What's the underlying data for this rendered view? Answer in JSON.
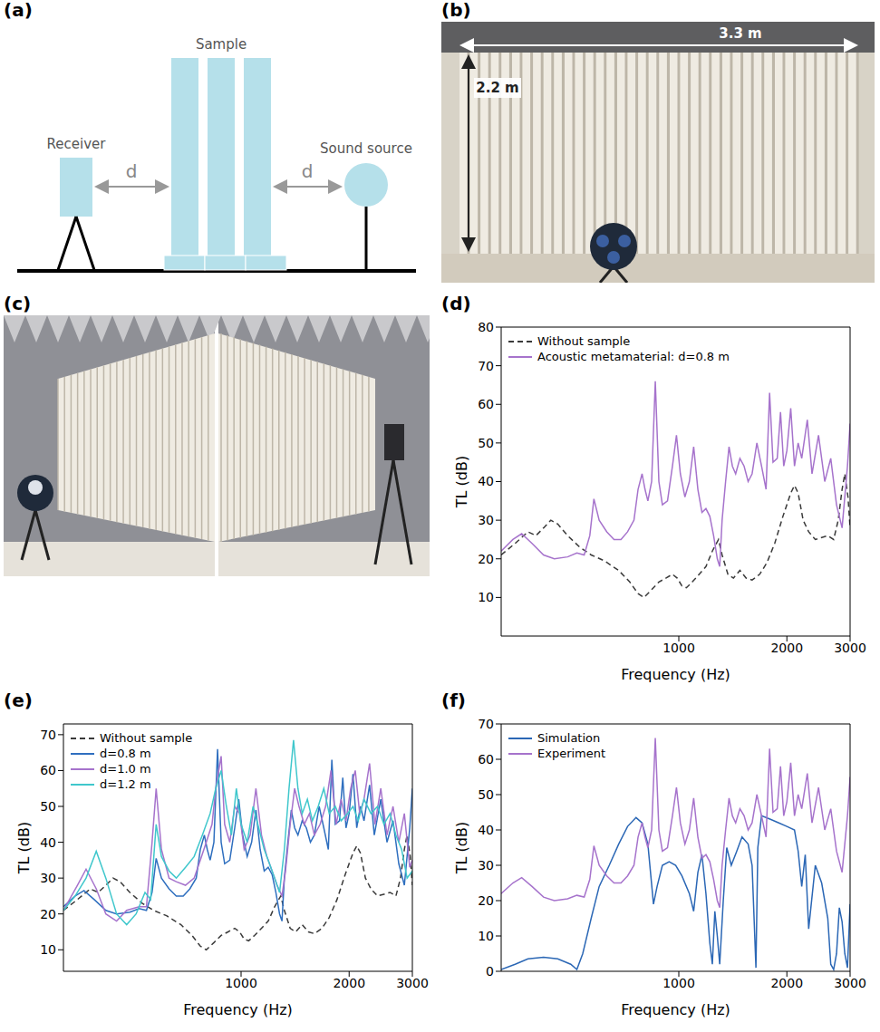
{
  "panel_labels": [
    "(a)",
    "(b)",
    "(c)",
    "(d)",
    "(e)",
    "(f)"
  ],
  "schematic": {
    "receiver": "Receiver",
    "sample": "Sample",
    "source": "Sound source",
    "distance": "d"
  },
  "photo_b": {
    "width_label": "3.3 m",
    "height_label": "2.2 m"
  },
  "chart_data": [
    {
      "type": "line",
      "x_label": "Frequency (Hz)",
      "y_label": "TL (dB)",
      "log": "x",
      "grid": false,
      "legend": "upper left",
      "xlim": [
        320,
        3000
      ],
      "xticks": [
        1000,
        2000,
        3000
      ],
      "ylim": [
        0,
        80
      ],
      "yticks": [
        10,
        20,
        30,
        40,
        50,
        60,
        70,
        80
      ],
      "series": [
        {
          "name": "Without sample",
          "color": "#3a3a3a",
          "line_style": "dashed",
          "x": [
            320,
            350,
            380,
            400,
            420,
            440,
            460,
            490,
            530,
            570,
            620,
            680,
            730,
            770,
            800,
            840,
            880,
            920,
            960,
            990,
            1020,
            1050,
            1090,
            1140,
            1190,
            1240,
            1290,
            1320,
            1370,
            1420,
            1480,
            1540,
            1600,
            1680,
            1760,
            1850,
            1950,
            2050,
            2100,
            2150,
            2220,
            2300,
            2400,
            2500,
            2600,
            2700,
            2780,
            2850,
            2900,
            2960,
            3000
          ],
          "values": [
            21,
            24,
            27,
            26,
            28,
            30,
            29,
            26,
            23,
            21,
            19.5,
            17,
            14,
            11,
            10,
            12,
            14,
            15,
            16,
            15,
            13,
            12.5,
            14,
            16,
            18,
            22,
            25,
            21,
            16,
            15,
            17,
            15,
            14.5,
            16,
            19,
            24,
            31,
            37,
            39,
            37,
            30,
            27,
            25,
            25.5,
            26,
            25,
            30,
            38,
            42,
            36,
            28
          ]
        },
        {
          "name": "Acoustic metamaterial: d=0.8 m",
          "color": "#a673cc",
          "line_style": "solid",
          "x": [
            320,
            345,
            365,
            390,
            420,
            450,
            490,
            520,
            545,
            565,
            580,
            600,
            630,
            660,
            690,
            720,
            750,
            770,
            790,
            805,
            820,
            840,
            860,
            880,
            900,
            930,
            960,
            985,
            1010,
            1040,
            1070,
            1100,
            1130,
            1160,
            1190,
            1220,
            1250,
            1280,
            1300,
            1320,
            1350,
            1380,
            1410,
            1440,
            1480,
            1520,
            1560,
            1600,
            1650,
            1700,
            1750,
            1790,
            1830,
            1880,
            1920,
            1960,
            2000,
            2050,
            2100,
            2150,
            2200,
            2280,
            2350,
            2450,
            2550,
            2650,
            2750,
            2850,
            2950,
            3000
          ],
          "values": [
            22,
            25,
            26.5,
            24,
            21,
            20,
            20.5,
            21.5,
            21,
            26,
            35.5,
            30,
            27,
            25,
            25,
            27,
            30,
            38,
            42,
            38,
            35,
            40,
            66,
            40,
            34,
            35,
            44,
            52,
            42,
            36,
            40,
            49,
            38,
            32,
            33,
            31,
            26,
            20,
            18,
            30,
            40,
            49,
            44,
            42,
            46,
            44,
            40,
            42,
            50,
            44,
            38,
            63,
            45,
            46,
            58,
            44,
            48,
            59,
            44,
            50,
            46,
            56,
            42,
            52,
            40,
            46,
            34,
            28,
            44,
            55
          ]
        }
      ]
    },
    {
      "type": "line",
      "x_label": "Frequency (Hz)",
      "y_label": "TL (dB)",
      "log": "x",
      "grid": false,
      "legend": "upper left",
      "xlim": [
        320,
        3000
      ],
      "xticks": [
        1000,
        2000,
        3000
      ],
      "ylim": [
        4,
        73
      ],
      "yticks": [
        10,
        20,
        30,
        40,
        50,
        60,
        70
      ],
      "series": [
        {
          "name": "Without sample",
          "color": "#3a3a3a",
          "line_style": "dashed",
          "x": [
            320,
            350,
            380,
            400,
            420,
            440,
            460,
            490,
            530,
            570,
            620,
            680,
            730,
            770,
            800,
            840,
            880,
            920,
            960,
            990,
            1020,
            1050,
            1090,
            1140,
            1190,
            1240,
            1290,
            1320,
            1370,
            1420,
            1480,
            1540,
            1600,
            1680,
            1760,
            1850,
            1950,
            2050,
            2100,
            2150,
            2220,
            2300,
            2400,
            2500,
            2600,
            2700,
            2780,
            2850,
            2900,
            2960,
            3000
          ],
          "values": [
            21,
            24,
            27,
            26,
            28,
            30,
            29,
            26,
            23,
            21,
            19.5,
            17,
            14,
            11,
            10,
            12,
            14,
            15,
            16,
            15,
            13,
            12.5,
            14,
            16,
            18,
            22,
            25,
            21,
            16,
            15,
            17,
            15,
            14.5,
            16,
            19,
            24,
            31,
            37,
            39,
            37,
            30,
            27,
            25,
            25.5,
            26,
            25,
            30,
            38,
            42,
            36,
            28
          ]
        },
        {
          "name": "d=0.8 m",
          "color": "#2f6fbf",
          "line_style": "solid",
          "x": [
            320,
            345,
            365,
            390,
            420,
            450,
            490,
            520,
            545,
            565,
            580,
            600,
            630,
            660,
            690,
            720,
            750,
            770,
            790,
            805,
            820,
            840,
            860,
            880,
            900,
            930,
            960,
            985,
            1010,
            1040,
            1070,
            1100,
            1130,
            1160,
            1190,
            1220,
            1250,
            1280,
            1300,
            1320,
            1350,
            1380,
            1410,
            1440,
            1480,
            1520,
            1560,
            1600,
            1650,
            1700,
            1750,
            1790,
            1830,
            1880,
            1920,
            1960,
            2000,
            2050,
            2100,
            2150,
            2200,
            2280,
            2350,
            2450,
            2550,
            2650,
            2750,
            2850,
            2950,
            3000
          ],
          "values": [
            22,
            25,
            26.5,
            24,
            21,
            20,
            20.5,
            21.5,
            21,
            26,
            35.5,
            30,
            27,
            25,
            25,
            27,
            30,
            38,
            42,
            38,
            35,
            40,
            66,
            40,
            34,
            35,
            44,
            52,
            42,
            36,
            40,
            49,
            38,
            32,
            33,
            31,
            26,
            20,
            18,
            30,
            40,
            49,
            44,
            42,
            46,
            44,
            40,
            42,
            50,
            44,
            38,
            63,
            45,
            46,
            58,
            44,
            48,
            59,
            44,
            50,
            46,
            56,
            42,
            52,
            40,
            46,
            34,
            28,
            44,
            55
          ]
        },
        {
          "name": "d=1.0 m",
          "color": "#a673cc",
          "line_style": "solid",
          "x": [
            320,
            350,
            370,
            395,
            420,
            450,
            480,
            520,
            545,
            565,
            580,
            600,
            630,
            660,
            700,
            740,
            770,
            800,
            830,
            850,
            880,
            900,
            930,
            960,
            990,
            1020,
            1060,
            1100,
            1140,
            1180,
            1220,
            1260,
            1300,
            1330,
            1370,
            1410,
            1450,
            1500,
            1550,
            1600,
            1660,
            1720,
            1780,
            1840,
            1900,
            1960,
            2020,
            2080,
            2140,
            2200,
            2280,
            2360,
            2450,
            2550,
            2650,
            2750,
            2850,
            2950,
            3000
          ],
          "values": [
            21,
            28,
            32.5,
            27,
            20,
            18,
            21,
            22,
            22,
            40,
            55,
            38,
            30,
            29,
            28,
            30,
            35,
            40,
            45,
            55,
            64,
            45,
            40,
            50,
            48,
            38,
            42,
            55,
            42,
            36,
            32,
            28,
            25,
            32,
            45,
            55,
            50,
            45,
            48,
            42,
            45,
            50,
            60,
            45,
            52,
            46,
            55,
            60,
            48,
            52,
            62,
            45,
            55,
            42,
            50,
            40,
            48,
            33,
            35
          ]
        },
        {
          "name": "d=1.2 m",
          "color": "#3fc7cc",
          "line_style": "solid",
          "x": [
            320,
            345,
            370,
            395,
            420,
            450,
            480,
            510,
            540,
            560,
            580,
            600,
            630,
            660,
            700,
            740,
            780,
            820,
            850,
            880,
            910,
            940,
            970,
            1000,
            1040,
            1080,
            1120,
            1160,
            1200,
            1240,
            1280,
            1320,
            1360,
            1400,
            1440,
            1480,
            1530,
            1580,
            1640,
            1700,
            1760,
            1830,
            1900,
            1980,
            2050,
            2120,
            2200,
            2300,
            2400,
            2500,
            2600,
            2700,
            2800,
            2900,
            3000
          ],
          "values": [
            21,
            25,
            30,
            37.5,
            30,
            20,
            17,
            20,
            26,
            24,
            45,
            36,
            32,
            30,
            33,
            36,
            42,
            48,
            55,
            60,
            50,
            42,
            55,
            45,
            40,
            50,
            44,
            38,
            34,
            30,
            26,
            38,
            55,
            68.5,
            55,
            48,
            52,
            46,
            50,
            55,
            48,
            50,
            46,
            48,
            50,
            46,
            52,
            48,
            50,
            45,
            48,
            42,
            38,
            30,
            32
          ]
        }
      ]
    },
    {
      "type": "line",
      "x_label": "Frequency (Hz)",
      "y_label": "TL (dB)",
      "log": "x",
      "grid": false,
      "legend": "upper left",
      "xlim": [
        320,
        3000
      ],
      "xticks": [
        1000,
        2000,
        3000
      ],
      "ylim": [
        0,
        70
      ],
      "yticks": [
        0,
        10,
        20,
        30,
        40,
        50,
        60,
        70
      ],
      "series": [
        {
          "name": "Simulation",
          "color": "#2b67b5",
          "line_style": "solid",
          "x": [
            320,
            350,
            380,
            420,
            460,
            500,
            520,
            540,
            570,
            600,
            640,
            680,
            720,
            760,
            790,
            820,
            850,
            870,
            900,
            940,
            980,
            1020,
            1070,
            1100,
            1130,
            1160,
            1190,
            1220,
            1240,
            1260,
            1280,
            1300,
            1330,
            1360,
            1400,
            1450,
            1500,
            1560,
            1600,
            1640,
            1660,
            1700,
            1800,
            1900,
            2000,
            2100,
            2150,
            2200,
            2250,
            2300,
            2400,
            2500,
            2600,
            2650,
            2700,
            2750,
            2800,
            2850,
            2900,
            2950,
            3000
          ],
          "values": [
            0.5,
            2,
            3.5,
            4,
            3.5,
            2,
            0.5,
            5,
            15,
            24,
            30,
            36,
            41,
            43.5,
            42,
            36,
            19,
            24,
            30,
            31,
            30,
            27,
            22,
            17,
            28,
            33,
            22,
            8,
            2,
            17,
            10,
            2,
            20,
            35,
            30,
            34,
            38,
            36,
            30,
            1,
            35,
            44,
            43,
            42,
            41,
            40,
            34,
            24,
            33,
            12,
            30,
            25,
            15,
            2,
            0.5,
            5,
            18,
            14,
            5,
            1,
            19
          ]
        },
        {
          "name": "Experiment",
          "color": "#a673cc",
          "line_style": "solid",
          "x": [
            320,
            345,
            365,
            390,
            420,
            450,
            490,
            520,
            545,
            565,
            580,
            600,
            630,
            660,
            690,
            720,
            750,
            770,
            790,
            805,
            820,
            840,
            860,
            880,
            900,
            930,
            960,
            985,
            1010,
            1040,
            1070,
            1100,
            1130,
            1160,
            1190,
            1220,
            1250,
            1280,
            1300,
            1320,
            1350,
            1380,
            1410,
            1440,
            1480,
            1520,
            1560,
            1600,
            1650,
            1700,
            1750,
            1790,
            1830,
            1880,
            1920,
            1960,
            2000,
            2050,
            2100,
            2150,
            2200,
            2280,
            2350,
            2450,
            2550,
            2650,
            2750,
            2850,
            2950,
            3000
          ],
          "values": [
            22,
            25,
            26.5,
            24,
            21,
            20,
            20.5,
            21.5,
            21,
            26,
            35.5,
            30,
            27,
            25,
            25,
            27,
            30,
            38,
            42,
            38,
            35,
            40,
            66,
            40,
            34,
            35,
            44,
            52,
            42,
            36,
            40,
            49,
            38,
            32,
            33,
            31,
            26,
            20,
            18,
            30,
            40,
            49,
            44,
            42,
            46,
            44,
            40,
            42,
            50,
            44,
            38,
            63,
            45,
            46,
            58,
            44,
            48,
            59,
            44,
            50,
            46,
            56,
            42,
            52,
            40,
            46,
            34,
            28,
            44,
            55
          ]
        }
      ]
    }
  ]
}
